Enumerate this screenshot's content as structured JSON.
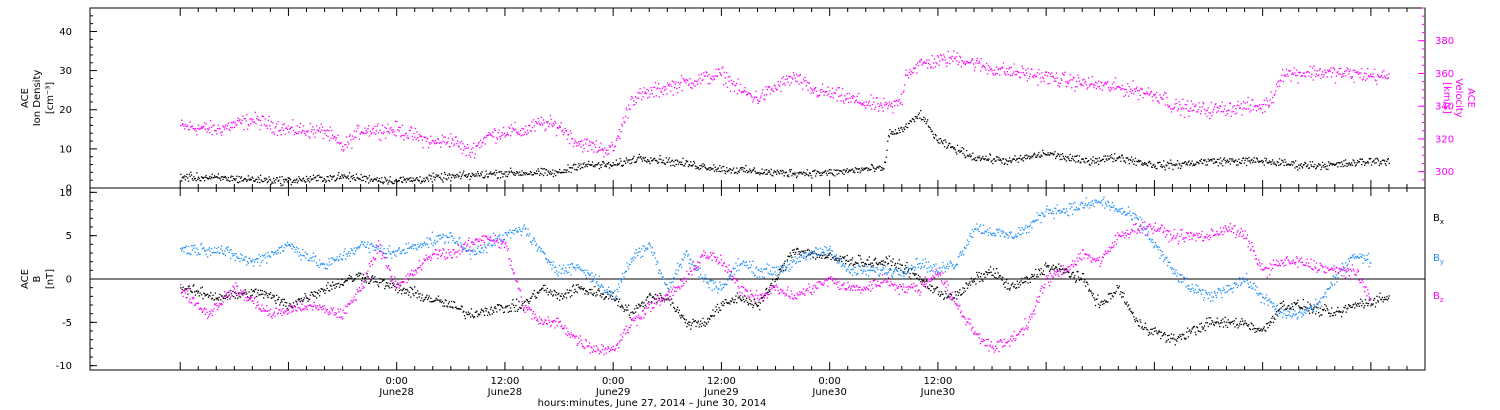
{
  "chart_data": [
    {
      "type": "scatter",
      "panel": "plasma",
      "ylabel_left": [
        "ACE",
        "Ion Density",
        "[cm⁻³]"
      ],
      "ylabel_right": [
        "ACE",
        "Velocity",
        "[km/s]"
      ],
      "yticks_left": [
        "0",
        "10",
        "20",
        "30",
        "40"
      ],
      "yticks_right": [
        "300",
        "320",
        "340",
        "360",
        "380"
      ],
      "ylim_left": [
        0,
        46
      ],
      "ylim_right": [
        290,
        400
      ],
      "series": [
        {
          "axis": "left",
          "color": "#000000",
          "knots": [
            [
              -24,
              3
            ],
            [
              -18,
              2.5
            ],
            [
              -12,
              2
            ],
            [
              -6,
              3
            ],
            [
              0,
              2
            ],
            [
              6,
              3
            ],
            [
              12,
              4
            ],
            [
              14,
              4
            ],
            [
              18,
              4
            ],
            [
              20,
              6
            ],
            [
              24,
              6
            ],
            [
              27,
              8
            ],
            [
              30,
              7
            ],
            [
              36,
              5
            ],
            [
              42,
              4
            ],
            [
              48,
              4
            ],
            [
              52,
              5
            ],
            [
              54,
              5
            ],
            [
              54.5,
              14
            ],
            [
              56,
              15
            ],
            [
              58,
              19
            ],
            [
              60,
              12
            ],
            [
              62,
              10
            ],
            [
              64,
              8
            ],
            [
              68,
              7
            ],
            [
              72,
              9
            ],
            [
              76,
              7
            ],
            [
              80,
              8
            ],
            [
              82,
              7
            ],
            [
              84,
              6
            ],
            [
              86,
              6
            ],
            [
              90,
              7
            ],
            [
              96,
              7
            ],
            [
              100,
              6
            ],
            [
              104,
              6
            ],
            [
              108,
              7
            ],
            [
              110,
              7
            ]
          ],
          "spread": 0.9
        },
        {
          "axis": "right",
          "color": "#ff00ff",
          "knots": [
            [
              -24,
              328
            ],
            [
              -20,
              326
            ],
            [
              -16,
              332
            ],
            [
              -12,
              326
            ],
            [
              -8,
              325
            ],
            [
              -6,
              315
            ],
            [
              -4,
              326
            ],
            [
              0,
              326
            ],
            [
              4,
              318
            ],
            [
              6,
              320
            ],
            [
              8,
              312
            ],
            [
              10,
              322
            ],
            [
              12,
              325
            ],
            [
              14,
              325
            ],
            [
              16,
              330
            ],
            [
              18,
              328
            ],
            [
              20,
              318
            ],
            [
              23,
              314
            ],
            [
              24,
              314
            ],
            [
              26,
              345
            ],
            [
              30,
              352
            ],
            [
              33,
              356
            ],
            [
              36,
              360
            ],
            [
              38,
              350
            ],
            [
              40,
              345
            ],
            [
              42,
              352
            ],
            [
              44,
              358
            ],
            [
              46,
              350
            ],
            [
              48,
              348
            ],
            [
              50,
              345
            ],
            [
              52,
              342
            ],
            [
              54,
              340
            ],
            [
              55,
              340
            ],
            [
              56,
              345
            ],
            [
              56.3,
              360
            ],
            [
              58,
              366
            ],
            [
              62,
              370
            ],
            [
              66,
              363
            ],
            [
              70,
              360
            ],
            [
              74,
              356
            ],
            [
              78,
              353
            ],
            [
              82,
              350
            ],
            [
              85,
              346
            ],
            [
              86,
              340
            ],
            [
              90,
              338
            ],
            [
              94,
              340
            ],
            [
              96,
              340
            ],
            [
              97,
              345
            ],
            [
              98,
              360
            ],
            [
              102,
              361
            ],
            [
              106,
              360
            ],
            [
              110,
              358
            ]
          ],
          "spread": 4
        }
      ]
    },
    {
      "type": "scatter",
      "panel": "magnetic-field",
      "ylabel_left": [
        "ACE",
        "B",
        "[nT]"
      ],
      "yticks_left": [
        "-10",
        "-5",
        "0",
        "5",
        "10"
      ],
      "ylim_left": [
        -10.5,
        10.5
      ],
      "legend": [
        "Bx",
        "By",
        "Bz"
      ],
      "legend_placement": "right",
      "series": [
        {
          "name": "Bx",
          "color": "#000000",
          "knots": [
            [
              -24,
              -1
            ],
            [
              -20,
              -2
            ],
            [
              -15,
              -1.5
            ],
            [
              -12,
              -3
            ],
            [
              -8,
              -1
            ],
            [
              -4,
              0.5
            ],
            [
              0,
              -1
            ],
            [
              6,
              -3
            ],
            [
              8,
              -4
            ],
            [
              10,
              -3.5
            ],
            [
              14,
              -3
            ],
            [
              16,
              -1
            ],
            [
              18,
              -2
            ],
            [
              20,
              -1
            ],
            [
              24,
              -2
            ],
            [
              26,
              -4
            ],
            [
              28,
              -2
            ],
            [
              30,
              -2
            ],
            [
              32,
              -5
            ],
            [
              34,
              -5
            ],
            [
              36,
              -3
            ],
            [
              38,
              -2
            ],
            [
              40,
              -3
            ],
            [
              42,
              0
            ],
            [
              44,
              3.5
            ],
            [
              46,
              3
            ],
            [
              48,
              2.5
            ],
            [
              52,
              2
            ],
            [
              54,
              2
            ],
            [
              56,
              1.5
            ],
            [
              58,
              0
            ],
            [
              60,
              -1.5
            ],
            [
              62,
              -2
            ],
            [
              64,
              0
            ],
            [
              66,
              1
            ],
            [
              68,
              -1
            ],
            [
              70,
              0
            ],
            [
              72,
              1.5
            ],
            [
              74,
              1
            ],
            [
              76,
              0
            ],
            [
              78,
              -3
            ],
            [
              80,
              -1
            ],
            [
              82,
              -5
            ],
            [
              84,
              -6
            ],
            [
              86,
              -7
            ],
            [
              88,
              -6
            ],
            [
              90,
              -5
            ],
            [
              94,
              -5
            ],
            [
              96,
              -6
            ],
            [
              98,
              -3
            ],
            [
              100,
              -3
            ],
            [
              104,
              -4
            ],
            [
              106,
              -3
            ],
            [
              110,
              -2
            ]
          ],
          "spread": 0.55
        },
        {
          "name": "By",
          "color": "#1e90ff",
          "knots": [
            [
              -24,
              3.5
            ],
            [
              -20,
              3.5
            ],
            [
              -16,
              2
            ],
            [
              -12,
              4
            ],
            [
              -8,
              1.5
            ],
            [
              -4,
              4
            ],
            [
              0,
              3
            ],
            [
              2,
              4
            ],
            [
              6,
              5
            ],
            [
              8,
              3
            ],
            [
              10,
              4
            ],
            [
              12,
              5
            ],
            [
              14,
              6
            ],
            [
              16,
              3
            ],
            [
              18,
              1
            ],
            [
              20,
              1.5
            ],
            [
              22,
              0
            ],
            [
              24,
              -2
            ],
            [
              26,
              2.5
            ],
            [
              28,
              4
            ],
            [
              30,
              -1
            ],
            [
              32,
              3
            ],
            [
              34,
              0
            ],
            [
              36,
              -1
            ],
            [
              38,
              2
            ],
            [
              40,
              1
            ],
            [
              42,
              1
            ],
            [
              44,
              2
            ],
            [
              46,
              3
            ],
            [
              48,
              3.5
            ],
            [
              50,
              1
            ],
            [
              52,
              1
            ],
            [
              56,
              1
            ],
            [
              58,
              2
            ],
            [
              60,
              1
            ],
            [
              62,
              2
            ],
            [
              64,
              6
            ],
            [
              66,
              5.5
            ],
            [
              68,
              5
            ],
            [
              70,
              6
            ],
            [
              72,
              8
            ],
            [
              74,
              8
            ],
            [
              76,
              8.5
            ],
            [
              78,
              9
            ],
            [
              80,
              8
            ],
            [
              82,
              7
            ],
            [
              84,
              4
            ],
            [
              86,
              1
            ],
            [
              88,
              -1
            ],
            [
              90,
              -2
            ],
            [
              92,
              -1
            ],
            [
              94,
              0
            ],
            [
              96,
              -2
            ],
            [
              98,
              -4
            ],
            [
              100,
              -4
            ],
            [
              102,
              -3
            ],
            [
              104,
              0
            ],
            [
              106,
              3
            ],
            [
              108,
              2
            ]
          ],
          "spread": 0.6
        },
        {
          "name": "Bz",
          "color": "#ff00ff",
          "knots": [
            [
              -24,
              -1
            ],
            [
              -21,
              -4
            ],
            [
              -18,
              -1
            ],
            [
              -14,
              -4
            ],
            [
              -10,
              -3
            ],
            [
              -6,
              -4
            ],
            [
              -4,
              -1
            ],
            [
              -2,
              4
            ],
            [
              0,
              -1
            ],
            [
              4,
              3
            ],
            [
              6,
              3
            ],
            [
              8,
              4
            ],
            [
              10,
              5
            ],
            [
              12,
              4
            ],
            [
              14,
              -3
            ],
            [
              16,
              -5
            ],
            [
              18,
              -5
            ],
            [
              20,
              -7
            ],
            [
              22,
              -8
            ],
            [
              24,
              -8
            ],
            [
              26,
              -5
            ],
            [
              28,
              -3
            ],
            [
              30,
              -2
            ],
            [
              32,
              0
            ],
            [
              34,
              3
            ],
            [
              36,
              2
            ],
            [
              38,
              -1
            ],
            [
              40,
              -2
            ],
            [
              42,
              -1
            ],
            [
              44,
              -2
            ],
            [
              46,
              -1
            ],
            [
              48,
              0
            ],
            [
              50,
              -1
            ],
            [
              52,
              -1
            ],
            [
              54,
              0
            ],
            [
              56,
              -1
            ],
            [
              58,
              -1
            ],
            [
              60,
              1
            ],
            [
              62,
              -3
            ],
            [
              64,
              -6
            ],
            [
              66,
              -8
            ],
            [
              68,
              -7
            ],
            [
              70,
              -5
            ],
            [
              72,
              0
            ],
            [
              74,
              1
            ],
            [
              76,
              3
            ],
            [
              78,
              2
            ],
            [
              80,
              5
            ],
            [
              82,
              6
            ],
            [
              84,
              6
            ],
            [
              86,
              5
            ],
            [
              88,
              5
            ],
            [
              90,
              5
            ],
            [
              92,
              6
            ],
            [
              94,
              5
            ],
            [
              96,
              1
            ],
            [
              98,
              2
            ],
            [
              100,
              2
            ],
            [
              104,
              1
            ],
            [
              106,
              1
            ],
            [
              108,
              -2
            ]
          ],
          "spread": 0.6
        }
      ]
    }
  ],
  "x_axis": {
    "range_hours": [
      -34,
      114
    ],
    "ticks": [
      {
        "time": "0:00",
        "day": "June28"
      },
      {
        "time": "12:00",
        "day": "June28"
      },
      {
        "time": "0:00",
        "day": "June29"
      },
      {
        "time": "12:00",
        "day": "June29"
      },
      {
        "time": "0:00",
        "day": "June30"
      },
      {
        "time": "12:00",
        "day": "June30"
      }
    ],
    "tick_hours": [
      0,
      12,
      24,
      36,
      48,
      60
    ],
    "label": "hours:minutes, June 27, 2014 – June 30, 2014"
  },
  "legend": {
    "bx": {
      "main": "B",
      "sub": "x",
      "color": "#000000"
    },
    "by": {
      "main": "B",
      "sub": "y",
      "color": "#1e90ff"
    },
    "bz": {
      "main": "B",
      "sub": "z",
      "color": "#ff00ff"
    }
  },
  "colors": {
    "density": "#000000",
    "velocity": "#ff00ff",
    "bx": "#000000",
    "by": "#1e90ff",
    "bz": "#ff00ff"
  }
}
